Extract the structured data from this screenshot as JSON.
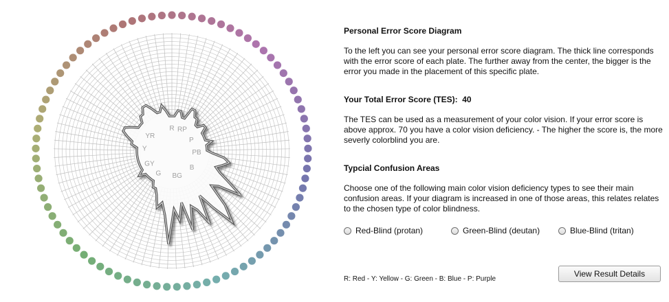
{
  "diagram": {
    "zone_labels": [
      "R",
      "RP",
      "P",
      "PB",
      "B",
      "BG",
      "G",
      "GY",
      "Y",
      "YR"
    ],
    "plate_count": 85,
    "error_profile": [
      6,
      6,
      7,
      7,
      6,
      6,
      8,
      8,
      7,
      7,
      6,
      6,
      7,
      7,
      6,
      6,
      6,
      6,
      7,
      6,
      6,
      6,
      7,
      9,
      10,
      9,
      8,
      9,
      11,
      14,
      10,
      9,
      13,
      16,
      12,
      9,
      14,
      11,
      10,
      14,
      9,
      12,
      10,
      16,
      11,
      9,
      10,
      8,
      7,
      7,
      6,
      6,
      6,
      6,
      6,
      7,
      6,
      6,
      6,
      6,
      6,
      6,
      6,
      6,
      6,
      6,
      7,
      7,
      8,
      9,
      9,
      8,
      7,
      7,
      7,
      8,
      8,
      9,
      9,
      8,
      7,
      7,
      8,
      7,
      6
    ]
  },
  "panel": {
    "title": "Personal Error Score Diagram",
    "intro": "To the left you can see your personal error score diagram. The thick line corresponds with the error score of each plate. The further away from the center, the bigger is the error you made in the placement of this specific plate.",
    "tes_label": "Your Total Error Score (TES):",
    "tes_value": "40",
    "tes_text": "The TES can be used as a measurement of your color vision. If your error score is above approx. 70 you have a color vision deficiency. - The higher the score is, the more severly colorblind you are.",
    "confusion_title": "Typcial Confusion Areas",
    "confusion_text": "Choose one of the following main color vision deficiency types to see their main confusion areas. If your diagram is increased in one of those areas, this relates relates to the chosen type of color blindness.",
    "options": [
      {
        "label": "Red-Blind (protan)",
        "selected": false
      },
      {
        "label": "Green-Blind (deutan)",
        "selected": false
      },
      {
        "label": "Blue-Blind (tritan)",
        "selected": false
      }
    ],
    "legend": "R: Red  -  Y: Yellow  -  G: Green  -  B: Blue  -  P: Purple",
    "button_label": "View Result Details"
  }
}
